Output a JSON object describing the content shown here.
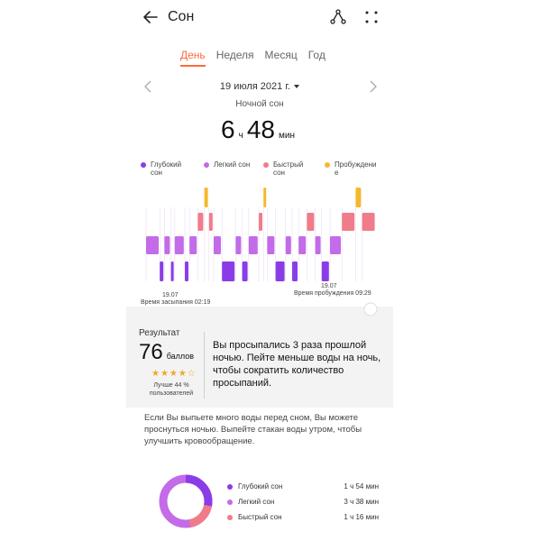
{
  "header": {
    "title": "Сон",
    "icons": [
      "back-arrow-icon",
      "share-icon",
      "more-icon"
    ]
  },
  "tabs": [
    "День",
    "Неделя",
    "Месяц",
    "Год"
  ],
  "active_tab": "День",
  "date": "19 июля 2021 г.",
  "section": "Ночной сон",
  "duration": {
    "hours": "6",
    "hours_unit": "ч",
    "minutes": "48",
    "minutes_unit": "мин"
  },
  "legend": [
    {
      "label": "Глубокий сон",
      "color": "#8a3de6"
    },
    {
      "label": "Легкий сон",
      "color": "#c36be8"
    },
    {
      "label": "Быстрый сон",
      "color": "#f07c8a"
    },
    {
      "label": "Пробуждение",
      "color": "#f5b82e"
    }
  ],
  "chart": {
    "start_date": "19.07",
    "start_label": "Время засыпания 02:19",
    "end_date": "19.07",
    "end_label": "Время пробуждения 09:29"
  },
  "result": {
    "label": "Результат",
    "score": "76",
    "score_unit": "баллов",
    "stars": "★★★★☆",
    "better": "Лучше 44 % пользователей",
    "message": "Вы просыпались 3 раза прошлой ночью. Пейте меньше воды на ночь, чтобы сократить количество просыпаний."
  },
  "tip": "Если Вы выпьете много воды перед сном, Вы можете проснуться ночью. Выпейте стакан воды утром, чтобы улучшить кровообращение.",
  "stats": [
    {
      "name": "Глубокий сон",
      "value": "1 ч 54 мин",
      "color": "#8a3de6"
    },
    {
      "name": "Легкий сон",
      "value": "3 ч 38 мин",
      "color": "#c36be8"
    },
    {
      "name": "Быстрый сон",
      "value": "1 ч 16 мин",
      "color": "#f07c8a"
    }
  ]
}
